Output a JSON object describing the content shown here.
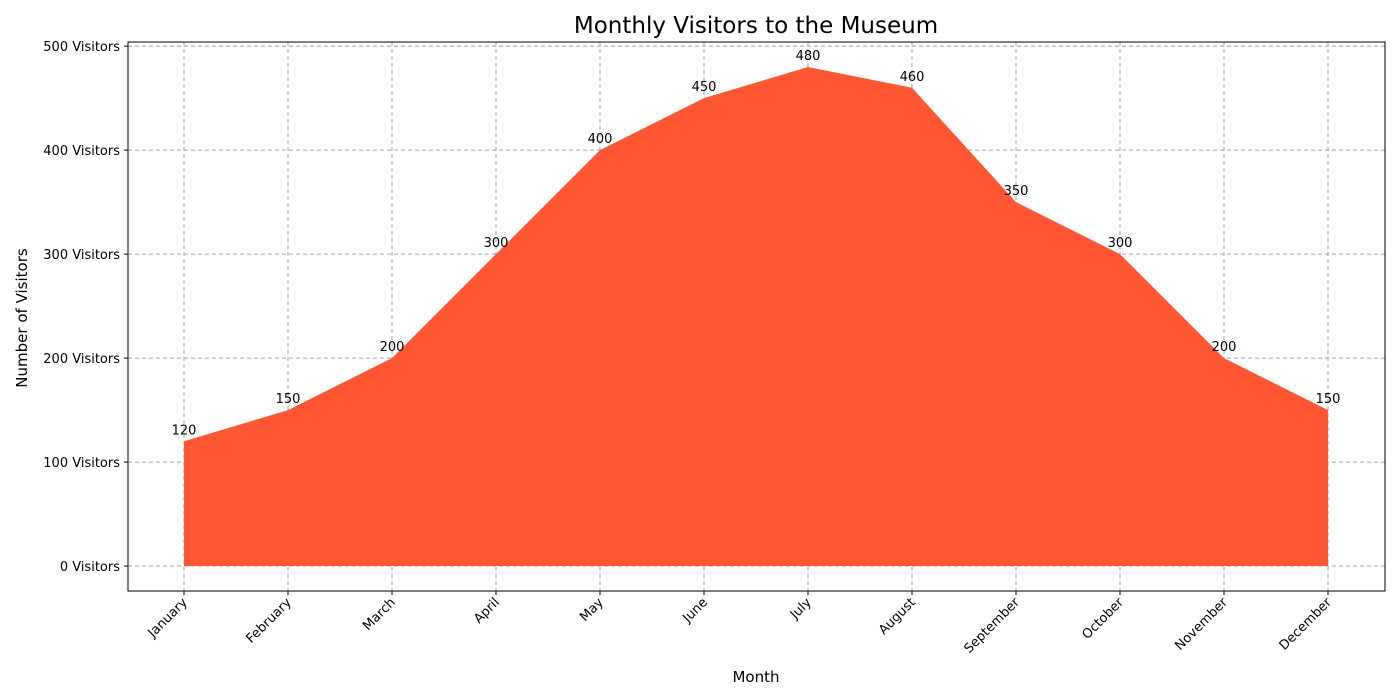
{
  "chart_data": {
    "type": "area",
    "title": "Monthly Visitors to the Museum",
    "xlabel": "Month",
    "ylabel": "Number of Visitors",
    "categories": [
      "January",
      "February",
      "March",
      "April",
      "May",
      "June",
      "July",
      "August",
      "September",
      "October",
      "November",
      "December"
    ],
    "series": [
      {
        "values": [
          120,
          150,
          200,
          300,
          400,
          450,
          480,
          460,
          350,
          300,
          200,
          150
        ]
      }
    ],
    "data_labels": [
      "120",
      "150",
      "200",
      "300",
      "400",
      "450",
      "480",
      "460",
      "350",
      "300",
      "200",
      "150"
    ],
    "ylim": [
      -24,
      504
    ],
    "yticks": [
      0,
      100,
      200,
      300,
      400,
      500
    ],
    "ytick_labels": [
      "0 Visitors",
      "100 Visitors",
      "200 Visitors",
      "300 Visitors",
      "400 Visitors",
      "500 Visitors"
    ],
    "grid": true,
    "legend": "none",
    "colors": {
      "fill": "#ff5733",
      "grid": "#a0a0a0"
    }
  }
}
